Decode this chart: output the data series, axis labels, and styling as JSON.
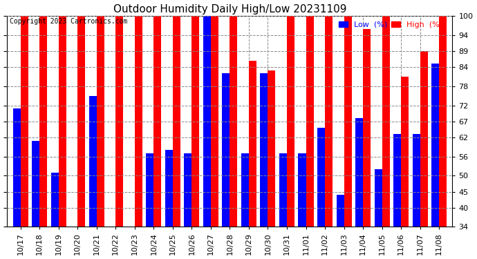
{
  "title": "Outdoor Humidity Daily High/Low 20231109",
  "copyright": "Copyright 2023 Cartronics.com",
  "legend_low": "Low  (%)",
  "legend_high": "High  (%)",
  "ylim": [
    34,
    100
  ],
  "yticks": [
    34,
    40,
    45,
    50,
    56,
    62,
    67,
    72,
    78,
    84,
    89,
    94,
    100
  ],
  "categories": [
    "10/17",
    "10/18",
    "10/19",
    "10/20",
    "10/21",
    "10/22",
    "10/23",
    "10/24",
    "10/25",
    "10/26",
    "10/27",
    "10/28",
    "10/29",
    "10/30",
    "10/31",
    "11/01",
    "11/02",
    "11/03",
    "11/04",
    "11/05",
    "11/06",
    "11/07",
    "11/08"
  ],
  "high_values": [
    100,
    100,
    100,
    100,
    100,
    100,
    100,
    100,
    100,
    100,
    100,
    100,
    86,
    83,
    100,
    100,
    100,
    100,
    96,
    100,
    81,
    89,
    100
  ],
  "low_values": [
    71,
    61,
    51,
    34,
    75,
    34,
    34,
    57,
    58,
    57,
    100,
    82,
    57,
    82,
    57,
    57,
    65,
    44,
    68,
    52,
    63,
    63,
    85
  ],
  "bar_color_high": "#ff0000",
  "bar_color_low": "#0000ff",
  "bg_color": "#ffffff",
  "grid_color": "#888888",
  "title_fontsize": 11,
  "tick_fontsize": 8,
  "copyright_fontsize": 7
}
